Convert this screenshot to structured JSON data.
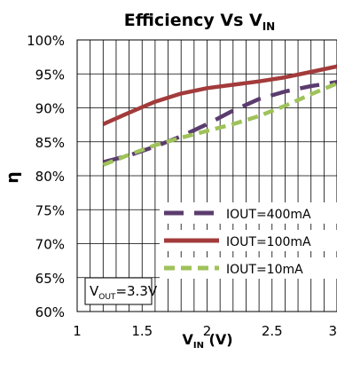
{
  "chart_data": {
    "type": "line",
    "title": {
      "main": "Efficiency Vs  V",
      "sub": "IN"
    },
    "xlabel": {
      "main": "V",
      "sub": "IN",
      "unit": " (V)"
    },
    "ylabel": "η",
    "xlim": [
      1,
      3
    ],
    "ylim": [
      60,
      100
    ],
    "x_ticks": [
      1,
      1.5,
      2,
      2.5,
      3
    ],
    "x_tick_labels": [
      "1",
      "1.5",
      "2",
      "2.5",
      "3"
    ],
    "y_ticks": [
      60,
      65,
      70,
      75,
      80,
      85,
      90,
      95,
      100
    ],
    "y_tick_labels": [
      "60%",
      "65%",
      "70%",
      "75%",
      "80%",
      "85%",
      "90%",
      "95%",
      "100%"
    ],
    "grid": true,
    "legend_position": "bottom-right",
    "annotation": {
      "main": "V",
      "sub": "OUT",
      "rest": "=3.3V"
    },
    "series": [
      {
        "name": "IOUT=400mA",
        "color": "#5b3c6e",
        "dash": "long-dash",
        "x": [
          1.2,
          1.4,
          1.6,
          1.8,
          2.0,
          2.2,
          2.4,
          2.6,
          2.8,
          3.0
        ],
        "y": [
          82.0,
          83.0,
          84.3,
          85.8,
          87.6,
          89.6,
          91.3,
          92.4,
          93.2,
          93.8
        ]
      },
      {
        "name": "IOUT=100mA",
        "color": "#a33b3b",
        "dash": "solid",
        "x": [
          1.2,
          1.4,
          1.6,
          1.8,
          2.0,
          2.2,
          2.4,
          2.6,
          2.8,
          3.0
        ],
        "y": [
          87.6,
          89.3,
          90.9,
          92.1,
          92.9,
          93.4,
          93.9,
          94.5,
          95.3,
          96.1
        ]
      },
      {
        "name": "IOUT=10mA",
        "color": "#9fc25a",
        "dash": "short-dash",
        "x": [
          1.2,
          1.4,
          1.6,
          1.8,
          2.0,
          2.2,
          2.4,
          2.6,
          2.8,
          3.0
        ],
        "y": [
          81.6,
          83.1,
          84.5,
          85.6,
          86.6,
          87.6,
          88.8,
          90.3,
          92.0,
          93.6
        ]
      }
    ]
  }
}
